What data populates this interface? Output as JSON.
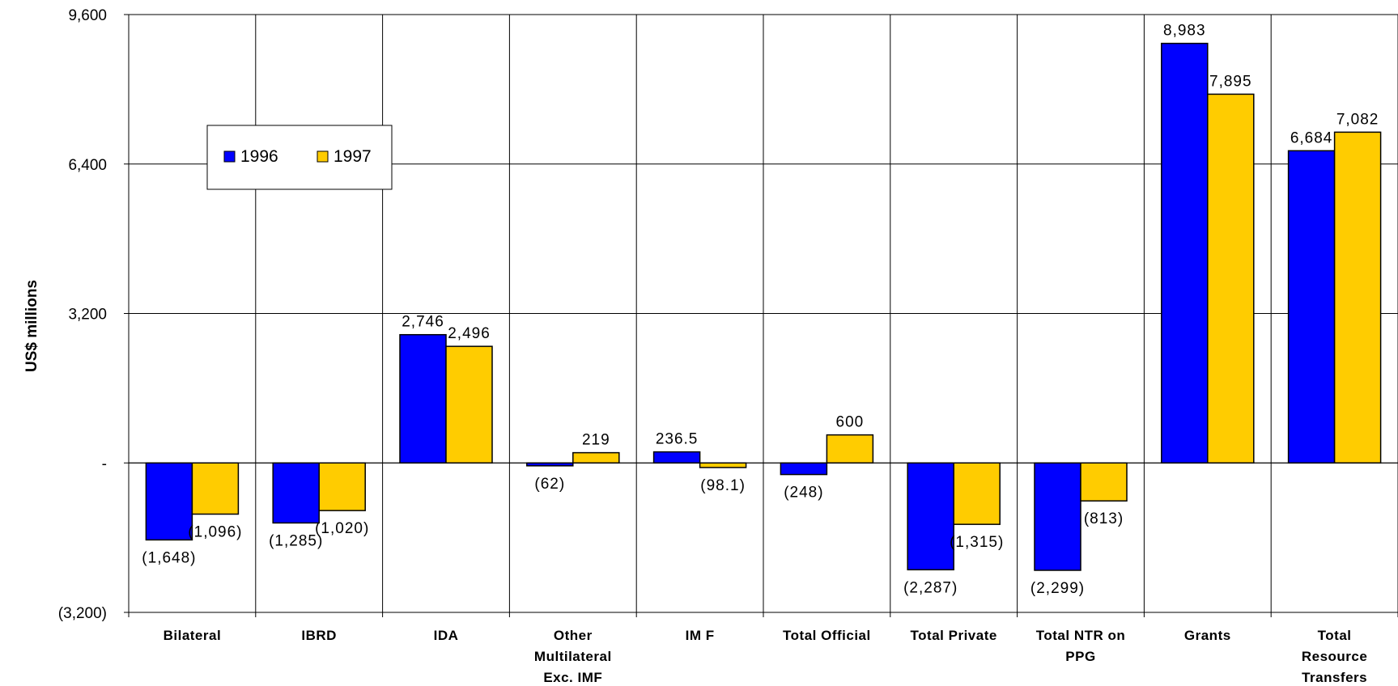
{
  "chart_data": {
    "type": "bar",
    "ylabel": "US$ millions",
    "ylim": [
      -3200,
      9600
    ],
    "y_ticks": [
      {
        "value": 9600,
        "label": "9,600"
      },
      {
        "value": 6400,
        "label": "6,400"
      },
      {
        "value": 3200,
        "label": "3,200"
      },
      {
        "value": 0,
        "label": "-"
      },
      {
        "value": -3200,
        "label": "(3,200)"
      }
    ],
    "categories": [
      [
        "Bilateral"
      ],
      [
        "IBRD"
      ],
      [
        "IDA"
      ],
      [
        "Other",
        "Multilateral",
        "Exc. IMF"
      ],
      [
        "IM F"
      ],
      [
        "Total Official"
      ],
      [
        "Total Private"
      ],
      [
        "Total NTR on",
        "PPG"
      ],
      [
        "Grants"
      ],
      [
        "Total",
        "Resource",
        "Transfers"
      ]
    ],
    "series": [
      {
        "name": "1996",
        "color": "#0000ff",
        "values": [
          -1648,
          -1285,
          2746,
          -62,
          236.5,
          -248,
          -2287,
          -2299,
          8983,
          6684
        ],
        "labels": [
          "(1,648)",
          "(1,285)",
          "2,746",
          "(62)",
          "236.5",
          "(248)",
          "(2,287)",
          "(2,299)",
          "8,983",
          "6,684"
        ]
      },
      {
        "name": "1997",
        "color": "#ffcc00",
        "values": [
          -1096,
          -1020,
          2496,
          219,
          -98.1,
          600,
          -1315,
          -813,
          7895,
          7082
        ],
        "labels": [
          "(1,096)",
          "(1,020)",
          "2,496",
          "219",
          "(98.1)",
          "600",
          "(1,315)",
          "(813)",
          "7,895",
          "7,082"
        ]
      }
    ],
    "grid": true,
    "legend": "upper-left"
  }
}
